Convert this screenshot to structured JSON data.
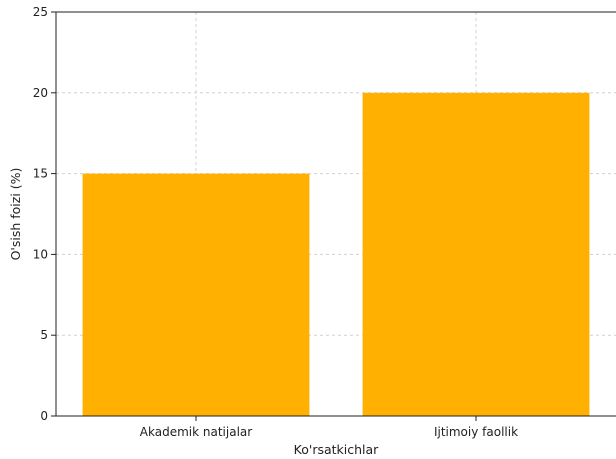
{
  "chart_data": {
    "type": "bar",
    "title": "",
    "xlabel": "Ko'rsatkichlar",
    "ylabel": "O'sish foizi (%)",
    "categories": [
      "Akademik natijalar",
      "Ijtimoiy faollik"
    ],
    "values": [
      15,
      20
    ],
    "ylim": [
      0,
      25
    ],
    "yticks": [
      "0",
      "5",
      "10",
      "15",
      "20",
      "25"
    ],
    "grid": true,
    "bar_color": "#FFB000"
  }
}
